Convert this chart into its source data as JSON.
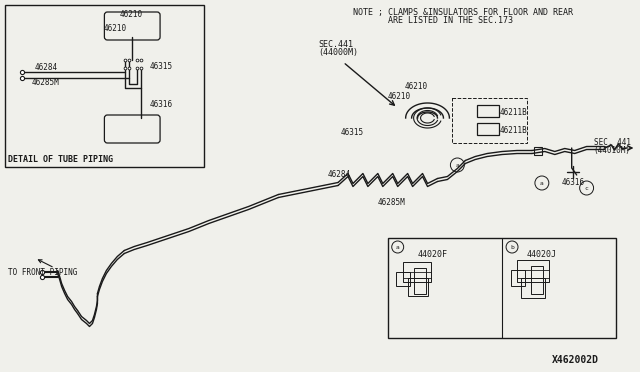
{
  "bg_color": "#f0f0eb",
  "line_color": "#1a1a1a",
  "text_color": "#1a1a1a",
  "note_line1": "NOTE ; CLAMPS &INSULATORS FOR FLOOR AND REAR",
  "note_line2": "       ARE LISTED IN THE SEC.173",
  "diagram_id": "X462002D",
  "detail_label": "DETAIL OF TUBE PIPING",
  "front_piping_label": "TO FRONT PIPING",
  "sec441_44000m_line1": "SEC.441",
  "sec441_44000m_line2": "(44000M)",
  "sec441_44010m_line1": "SEC. 441",
  "sec441_44010m_line2": "(44010M)"
}
